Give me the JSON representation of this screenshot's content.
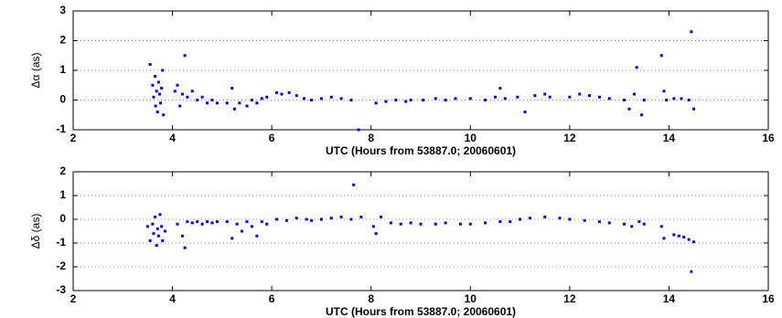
{
  "chart_data": [
    {
      "type": "scatter",
      "xlabel": "UTC (Hours from 53887.0; 20060601)",
      "ylabel": "Δα (as)",
      "color": "#0000ff",
      "grid": "y",
      "xlim": [
        2,
        16
      ],
      "xticks": [
        2,
        4,
        6,
        8,
        10,
        12,
        14,
        16
      ],
      "ylim": [
        -1,
        3
      ],
      "yticks": [
        -1,
        0,
        1,
        2,
        3
      ],
      "x": [
        3.55,
        3.6,
        3.62,
        3.65,
        3.66,
        3.68,
        3.7,
        3.72,
        3.74,
        3.76,
        3.78,
        3.8,
        3.82,
        4.05,
        4.1,
        4.15,
        4.2,
        4.25,
        4.3,
        4.4,
        4.5,
        4.6,
        4.7,
        4.8,
        4.9,
        5.1,
        5.2,
        5.25,
        5.35,
        5.5,
        5.6,
        5.7,
        5.8,
        5.9,
        6.1,
        6.2,
        6.35,
        6.5,
        6.65,
        6.8,
        7.0,
        7.2,
        7.4,
        7.6,
        7.75,
        8.1,
        8.3,
        8.5,
        8.7,
        8.8,
        9.05,
        9.3,
        9.5,
        9.7,
        10.0,
        10.3,
        10.5,
        10.6,
        10.7,
        10.95,
        11.1,
        11.3,
        11.5,
        11.6,
        12.0,
        12.2,
        12.4,
        12.6,
        12.8,
        13.1,
        13.2,
        13.3,
        13.35,
        13.45,
        13.5,
        13.85,
        13.9,
        13.95,
        14.1,
        14.25,
        14.4,
        14.45,
        14.5
      ],
      "values": [
        1.2,
        0.5,
        0.1,
        0.8,
        -0.2,
        0.3,
        -0.4,
        0.6,
        0.2,
        -0.1,
        0.4,
        1.0,
        -0.5,
        0.3,
        0.5,
        -0.2,
        0.2,
        1.5,
        0.1,
        0.3,
        0,
        0.1,
        -0.1,
        0,
        -0.1,
        -0.1,
        0.4,
        -0.3,
        -0.1,
        -0.2,
        0,
        -0.1,
        0.05,
        0.1,
        0.25,
        0.2,
        0.25,
        0.15,
        0.05,
        0,
        0.05,
        0.1,
        0.05,
        0,
        -1.0,
        -0.1,
        -0.05,
        0,
        -0.05,
        0,
        0,
        0.05,
        0,
        0.05,
        0.05,
        0,
        0.1,
        0.4,
        0.05,
        0.1,
        -0.4,
        0.15,
        0.2,
        0.1,
        0.1,
        0.2,
        0.15,
        0.1,
        0.05,
        0,
        -0.3,
        0.2,
        1.1,
        -0.5,
        0,
        1.5,
        0.3,
        0,
        0.05,
        0.05,
        0,
        2.3,
        -0.3
      ]
    },
    {
      "type": "scatter",
      "xlabel": "UTC (Hours from 53887.0; 20060601)",
      "ylabel": "Δδ (as)",
      "color": "#0000ff",
      "grid": "y",
      "xlim": [
        2,
        16
      ],
      "xticks": [
        2,
        4,
        6,
        8,
        10,
        12,
        14,
        16
      ],
      "ylim": [
        -3,
        2
      ],
      "yticks": [
        -3,
        -2,
        -1,
        0,
        1,
        2
      ],
      "x": [
        3.5,
        3.55,
        3.6,
        3.62,
        3.65,
        3.68,
        3.7,
        3.72,
        3.75,
        3.78,
        3.8,
        3.85,
        4.1,
        4.2,
        4.25,
        4.3,
        4.4,
        4.5,
        4.6,
        4.7,
        4.8,
        4.9,
        5.1,
        5.2,
        5.3,
        5.4,
        5.5,
        5.6,
        5.7,
        5.8,
        5.9,
        6.1,
        6.3,
        6.5,
        6.7,
        6.8,
        7.0,
        7.2,
        7.4,
        7.6,
        7.65,
        7.8,
        8.05,
        8.1,
        8.2,
        8.4,
        8.6,
        8.8,
        9.0,
        9.3,
        9.5,
        9.8,
        10.0,
        10.3,
        10.6,
        10.8,
        11.0,
        11.2,
        11.5,
        11.8,
        12.0,
        12.3,
        12.6,
        12.8,
        13.1,
        13.25,
        13.4,
        13.5,
        13.85,
        13.9,
        14.1,
        14.2,
        14.3,
        14.4,
        14.45,
        14.5
      ],
      "values": [
        -0.3,
        -0.9,
        -0.2,
        -0.6,
        0.1,
        -1.1,
        -0.4,
        -0.7,
        0.2,
        -0.3,
        -0.9,
        -0.5,
        -0.2,
        -0.7,
        -1.2,
        -0.1,
        -0.15,
        -0.1,
        -0.2,
        -0.1,
        -0.15,
        -0.1,
        -0.1,
        -0.8,
        -0.2,
        -0.5,
        -0.1,
        -0.3,
        -0.7,
        -0.1,
        -0.2,
        0,
        -0.05,
        0.05,
        0,
        -0.05,
        0,
        0.05,
        0.1,
        0,
        1.45,
        0.1,
        -0.3,
        -0.6,
        0.1,
        -0.15,
        -0.2,
        -0.15,
        -0.2,
        -0.2,
        -0.15,
        -0.2,
        -0.2,
        -0.15,
        -0.1,
        -0.1,
        0,
        0.05,
        0.1,
        0.05,
        0,
        -0.05,
        -0.1,
        -0.15,
        -0.2,
        -0.3,
        -0.1,
        -0.2,
        -0.3,
        -0.8,
        -0.65,
        -0.7,
        -0.75,
        -0.85,
        -2.2,
        -0.95
      ]
    }
  ]
}
